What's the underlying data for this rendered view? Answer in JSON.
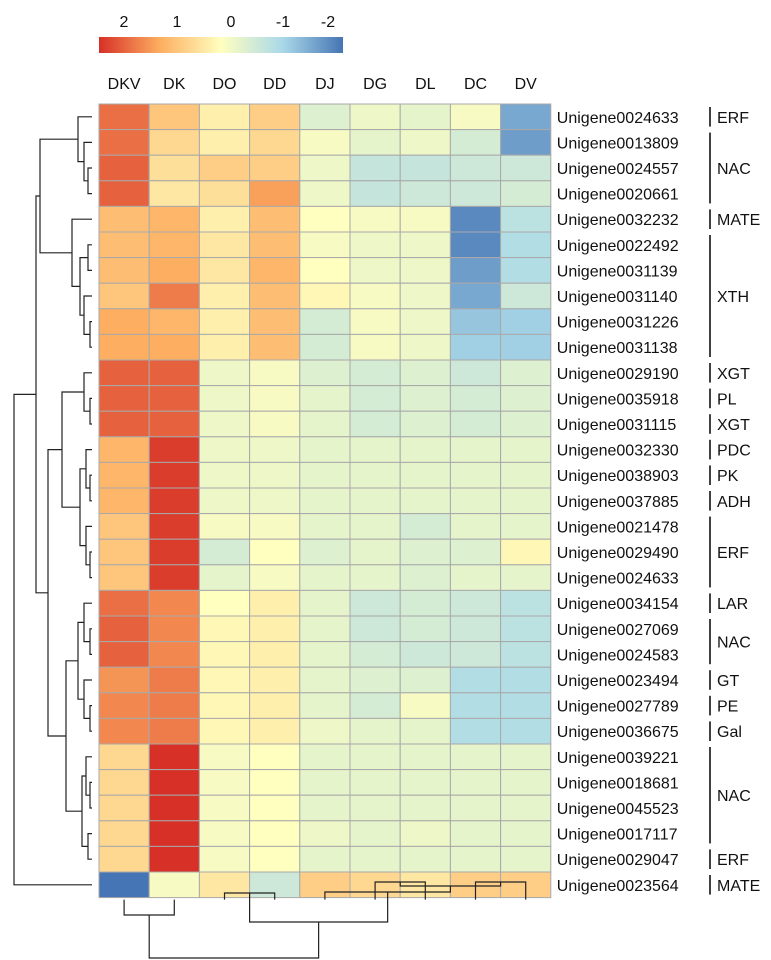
{
  "chart_data": {
    "type": "heatmap",
    "title": "",
    "colorbar": {
      "ticks": [
        "2",
        "1",
        "0",
        "-1",
        "-2"
      ],
      "range": [
        -2,
        2
      ],
      "colors": {
        "high": "#d73027",
        "mid_high": "#fdae61",
        "mid": "#ffffbf",
        "mid_low": "#abd9e9",
        "low": "#4575b4"
      }
    },
    "columns": [
      "DKV",
      "DK",
      "DO",
      "DD",
      "DJ",
      "DG",
      "DL",
      "DC",
      "DV"
    ],
    "rows": [
      "Unigene0024633",
      "Unigene0013809",
      "Unigene0024557",
      "Unigene0020661",
      "Unigene0032232",
      "Unigene0022492",
      "Unigene0031139",
      "Unigene0031140",
      "Unigene0031226",
      "Unigene0031138",
      "Unigene0029190",
      "Unigene0035918",
      "Unigene0031115",
      "Unigene0032330",
      "Unigene0038903",
      "Unigene0037885",
      "Unigene0021478",
      "Unigene0029490",
      "Unigene0024633",
      "Unigene0034154",
      "Unigene0027069",
      "Unigene0024583",
      "Unigene0023494",
      "Unigene0027789",
      "Unigene0036675",
      "Unigene0039221",
      "Unigene0018681",
      "Unigene0045523",
      "Unigene0017117",
      "Unigene0029047",
      "Unigene0023564"
    ],
    "row_groups": [
      {
        "label": "ERF",
        "start": 0,
        "end": 0
      },
      {
        "label": "NAC",
        "start": 1,
        "end": 3
      },
      {
        "label": "MATE",
        "start": 4,
        "end": 4
      },
      {
        "label": "XTH",
        "start": 5,
        "end": 9
      },
      {
        "label": "XGT",
        "start": 10,
        "end": 10
      },
      {
        "label": "PL",
        "start": 11,
        "end": 11
      },
      {
        "label": "XGT",
        "start": 12,
        "end": 12
      },
      {
        "label": "PDC",
        "start": 13,
        "end": 13
      },
      {
        "label": "PK",
        "start": 14,
        "end": 14
      },
      {
        "label": "ADH",
        "start": 15,
        "end": 15
      },
      {
        "label": "ERF",
        "start": 16,
        "end": 18
      },
      {
        "label": "LAR",
        "start": 19,
        "end": 19
      },
      {
        "label": "NAC",
        "start": 20,
        "end": 21
      },
      {
        "label": "GT",
        "start": 22,
        "end": 22
      },
      {
        "label": "PE",
        "start": 23,
        "end": 23
      },
      {
        "label": "Gal",
        "start": 24,
        "end": 24
      },
      {
        "label": "NAC",
        "start": 25,
        "end": 28
      },
      {
        "label": "ERF",
        "start": 29,
        "end": 29
      },
      {
        "label": "MATE",
        "start": 30,
        "end": 30
      }
    ],
    "values": [
      [
        1.5,
        0.7,
        0.2,
        0.6,
        -0.4,
        -0.2,
        -0.3,
        -0.1,
        -1.5
      ],
      [
        1.5,
        0.5,
        0.2,
        0.5,
        -0.1,
        -0.3,
        -0.2,
        -0.5,
        -1.6
      ],
      [
        1.6,
        0.4,
        0.6,
        0.6,
        -0.2,
        -0.7,
        -0.7,
        -0.6,
        -0.6
      ],
      [
        1.6,
        0.3,
        0.4,
        1.1,
        -0.2,
        -0.7,
        -0.6,
        -0.6,
        -0.5
      ],
      [
        0.8,
        0.9,
        0.2,
        0.8,
        0.0,
        -0.1,
        -0.1,
        -1.8,
        -0.8
      ],
      [
        0.8,
        0.9,
        0.3,
        0.8,
        -0.1,
        -0.2,
        -0.2,
        -1.8,
        -0.9
      ],
      [
        0.8,
        1.0,
        0.3,
        0.9,
        0.0,
        -0.2,
        -0.2,
        -1.6,
        -0.9
      ],
      [
        0.7,
        1.4,
        0.2,
        0.8,
        0.1,
        -0.1,
        -0.2,
        -1.5,
        -0.6
      ],
      [
        1.0,
        0.9,
        0.2,
        0.8,
        -0.5,
        -0.1,
        -0.2,
        -1.2,
        -1.1
      ],
      [
        1.0,
        1.0,
        0.2,
        0.8,
        -0.5,
        -0.1,
        -0.2,
        -1.1,
        -1.1
      ],
      [
        1.6,
        1.6,
        -0.2,
        -0.1,
        -0.4,
        -0.5,
        -0.4,
        -0.6,
        -0.4
      ],
      [
        1.6,
        1.6,
        -0.2,
        -0.1,
        -0.3,
        -0.5,
        -0.4,
        -0.5,
        -0.4
      ],
      [
        1.6,
        1.6,
        -0.2,
        -0.1,
        -0.3,
        -0.5,
        -0.4,
        -0.5,
        -0.4
      ],
      [
        0.9,
        1.9,
        -0.2,
        -0.2,
        -0.3,
        -0.3,
        -0.3,
        -0.3,
        -0.3
      ],
      [
        0.9,
        1.9,
        -0.2,
        -0.2,
        -0.3,
        -0.3,
        -0.3,
        -0.3,
        -0.3
      ],
      [
        0.9,
        1.9,
        -0.2,
        -0.2,
        -0.3,
        -0.3,
        -0.3,
        -0.3,
        -0.3
      ],
      [
        0.7,
        1.9,
        -0.1,
        -0.1,
        -0.3,
        -0.3,
        -0.5,
        -0.3,
        -0.3
      ],
      [
        0.7,
        1.9,
        -0.5,
        0.0,
        -0.4,
        -0.3,
        -0.4,
        -0.4,
        0.1
      ],
      [
        0.7,
        1.9,
        -0.3,
        -0.1,
        -0.3,
        -0.3,
        -0.4,
        -0.3,
        -0.3
      ],
      [
        1.5,
        1.3,
        0.0,
        0.2,
        -0.3,
        -0.6,
        -0.5,
        -0.6,
        -0.8
      ],
      [
        1.6,
        1.3,
        0.1,
        0.2,
        -0.3,
        -0.6,
        -0.5,
        -0.6,
        -0.8
      ],
      [
        1.6,
        1.3,
        0.1,
        0.2,
        -0.3,
        -0.5,
        -0.6,
        -0.6,
        -0.8
      ],
      [
        1.2,
        1.4,
        0.1,
        0.2,
        -0.3,
        -0.4,
        -0.4,
        -0.9,
        -0.9
      ],
      [
        1.3,
        1.4,
        0.1,
        0.2,
        -0.3,
        -0.5,
        -0.1,
        -0.9,
        -0.9
      ],
      [
        1.3,
        1.4,
        0.1,
        0.2,
        -0.2,
        -0.3,
        -0.3,
        -0.9,
        -0.9
      ],
      [
        0.5,
        2.1,
        -0.1,
        0.0,
        -0.3,
        -0.3,
        -0.3,
        -0.3,
        -0.3
      ],
      [
        0.5,
        2.1,
        -0.1,
        0.0,
        -0.3,
        -0.3,
        -0.3,
        -0.3,
        -0.3
      ],
      [
        0.5,
        2.1,
        -0.1,
        0.0,
        -0.3,
        -0.3,
        -0.3,
        -0.3,
        -0.3
      ],
      [
        0.5,
        2.1,
        -0.1,
        0.0,
        -0.2,
        -0.3,
        -0.2,
        -0.3,
        -0.3
      ],
      [
        0.5,
        2.1,
        -0.1,
        0.0,
        -0.3,
        -0.3,
        -0.3,
        -0.3,
        -0.3
      ],
      [
        -2.0,
        -0.1,
        0.3,
        -0.6,
        0.6,
        0.5,
        0.3,
        0.6,
        0.6
      ]
    ],
    "row_dendrogram": true,
    "column_dendrogram": true,
    "legend": "top-left",
    "grid": true
  }
}
